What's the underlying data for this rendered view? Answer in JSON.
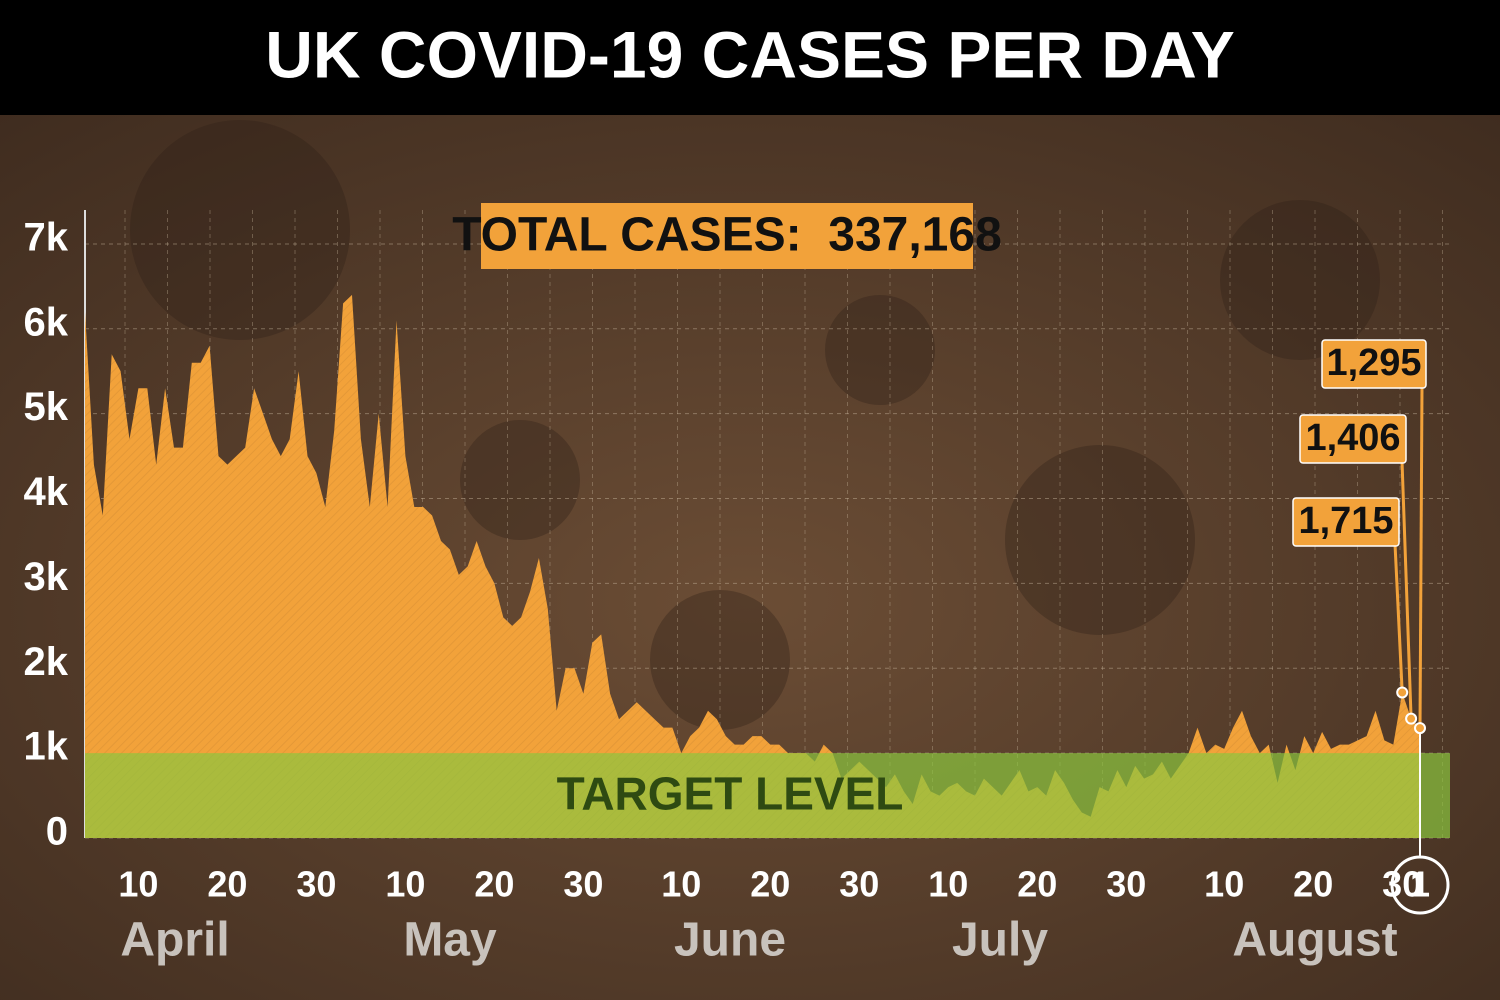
{
  "chart_data": {
    "type": "area",
    "title": "UK COVID-19 CASES PER DAY",
    "total_label": "TOTAL CASES:  337,168",
    "target_label": "TARGET LEVEL",
    "target_band": [
      0,
      1000
    ],
    "target_color": "#8cc63f",
    "color": "#f2a23a",
    "grid": true,
    "ylim": [
      0,
      7400
    ],
    "yticks": [
      0,
      {
        "value": 1000,
        "label": "1k"
      },
      {
        "value": 2000,
        "label": "2k"
      },
      {
        "value": 3000,
        "label": "3k"
      },
      {
        "value": 4000,
        "label": "4k"
      },
      {
        "value": 5000,
        "label": "5k"
      },
      {
        "value": 6000,
        "label": "6k"
      },
      {
        "value": 7000,
        "label": "7k"
      }
    ],
    "months": [
      "April",
      "May",
      "June",
      "July",
      "August"
    ],
    "categories": [
      null,
      null,
      null,
      null,
      null,
      null,
      "10",
      null,
      null,
      null,
      null,
      null,
      null,
      null,
      null,
      null,
      "20",
      null,
      null,
      null,
      null,
      null,
      null,
      null,
      null,
      null,
      "30",
      null,
      null,
      null,
      null,
      null,
      null,
      null,
      null,
      null,
      "10",
      null,
      null,
      null,
      null,
      null,
      null,
      null,
      null,
      null,
      "20",
      null,
      null,
      null,
      null,
      null,
      null,
      null,
      null,
      null,
      "30",
      null,
      null,
      null,
      null,
      null,
      null,
      null,
      null,
      null,
      null,
      "10",
      null,
      null,
      null,
      null,
      null,
      null,
      null,
      null,
      null,
      "20",
      null,
      null,
      null,
      null,
      null,
      null,
      null,
      null,
      null,
      "30",
      null,
      null,
      null,
      null,
      null,
      null,
      null,
      null,
      null,
      "10",
      null,
      null,
      null,
      null,
      null,
      null,
      null,
      null,
      null,
      "20",
      null,
      null,
      null,
      null,
      null,
      null,
      null,
      null,
      null,
      "30",
      null,
      null,
      null,
      null,
      null,
      null,
      null,
      null,
      null,
      null,
      "10",
      null,
      null,
      null,
      null,
      null,
      null,
      null,
      null,
      null,
      "20",
      null,
      null,
      null,
      null,
      null,
      null,
      null,
      null,
      null,
      "30",
      null,
      "1"
    ],
    "values": [
      6200,
      4400,
      3800,
      5700,
      5500,
      4700,
      5300,
      5300,
      4400,
      5300,
      4600,
      4600,
      5600,
      5600,
      5800,
      4500,
      4400,
      4500,
      4600,
      5300,
      5000,
      4700,
      4500,
      4700,
      5500,
      4500,
      4300,
      3900,
      4800,
      6300,
      6400,
      4700,
      3900,
      5000,
      3900,
      6100,
      4500,
      3900,
      3900,
      3800,
      3500,
      3400,
      3100,
      3200,
      3500,
      3200,
      3000,
      2600,
      2500,
      2600,
      2900,
      3300,
      2700,
      1500,
      2000,
      2000,
      1700,
      2300,
      2400,
      1700,
      1400,
      1500,
      1600,
      1500,
      1400,
      1300,
      1300,
      1000,
      1200,
      1300,
      1500,
      1400,
      1200,
      1100,
      1100,
      1200,
      1200,
      1100,
      1100,
      1000,
      1000,
      1000,
      900,
      1100,
      1000,
      700,
      800,
      900,
      800,
      700,
      600,
      750,
      550,
      400,
      750,
      550,
      500,
      600,
      650,
      550,
      500,
      700,
      600,
      500,
      650,
      800,
      550,
      600,
      500,
      800,
      650,
      450,
      300,
      250,
      600,
      550,
      800,
      600,
      850,
      700,
      750,
      900,
      700,
      850,
      1000,
      1300,
      1000,
      1100,
      1050,
      1300,
      1500,
      1200,
      1000,
      1100,
      650,
      1100,
      800,
      1200,
      1000,
      1250,
      1050,
      1100,
      1100,
      1150,
      1200,
      1500,
      1150,
      1100,
      1715,
      1406,
      1295
    ],
    "value_labels": [
      null,
      null,
      null,
      null,
      null,
      null,
      null,
      null,
      null,
      null,
      null,
      null,
      null,
      null,
      null,
      null,
      null,
      null,
      null,
      null,
      null,
      null,
      null,
      null,
      null,
      null,
      null,
      null,
      null,
      null,
      null,
      null,
      null,
      null,
      null,
      null,
      null,
      null,
      null,
      null,
      null,
      null,
      null,
      null,
      null,
      null,
      null,
      null,
      null,
      null,
      null,
      null,
      null,
      null,
      null,
      null,
      null,
      null,
      null,
      null,
      null,
      null,
      null,
      null,
      null,
      null,
      null,
      null,
      null,
      null,
      null,
      null,
      null,
      null,
      null,
      null,
      null,
      null,
      null,
      null,
      null,
      null,
      null,
      null,
      null,
      null,
      null,
      null,
      null,
      null,
      null,
      null,
      null,
      null,
      null,
      null,
      null,
      null,
      null,
      null,
      null,
      null,
      null,
      null,
      null,
      null,
      null,
      null,
      null,
      null,
      null,
      null,
      null,
      null,
      null,
      null,
      null,
      null,
      null,
      null,
      null,
      null,
      null,
      null,
      null,
      null,
      null,
      null,
      null,
      null,
      null,
      null,
      null,
      null,
      null,
      null,
      null,
      null,
      null,
      null,
      null,
      null,
      null,
      null,
      null,
      null,
      null,
      null,
      "1,715",
      "1,406",
      "1,295"
    ]
  }
}
